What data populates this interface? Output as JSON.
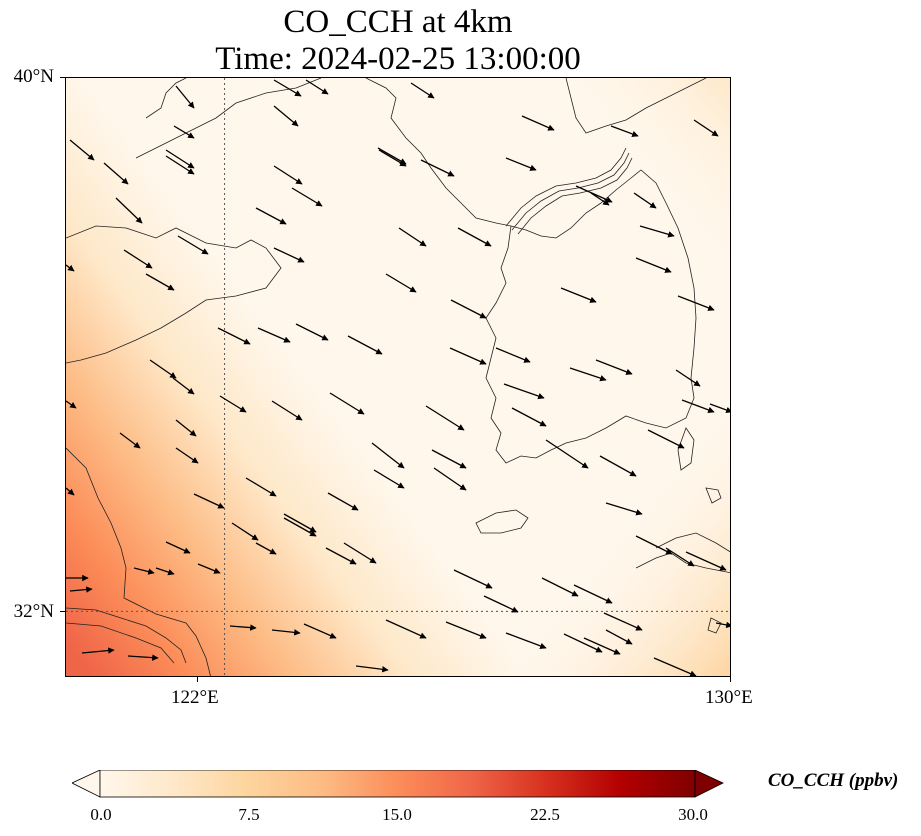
{
  "title": {
    "line1": "CO_CCH at 4km",
    "line2": "Time: 2024-02-25 13:00:00"
  },
  "map": {
    "projection": "lat-lon",
    "extent": {
      "lon_min": 119.5,
      "lon_max": 130.0,
      "lat_min": 31.0,
      "lat_max": 40.0
    },
    "gridlines": {
      "lons": [
        122
      ],
      "lats": [
        32
      ],
      "style": "dotted"
    },
    "lat_ticks": [
      {
        "value": 40,
        "label": "40°N"
      },
      {
        "value": 32,
        "label": "32°N"
      }
    ],
    "lon_ticks": [
      {
        "value": 122,
        "label": "122°E"
      },
      {
        "value": 130,
        "label": "130°E"
      }
    ],
    "field": {
      "variable": "CO_CCH",
      "units": "ppbv",
      "description_levels": "high values in south-west corner decreasing north-east",
      "max_in_view": 13.5
    },
    "wind_vectors": {
      "color": "#000000",
      "direction": "predominantly from north-west toward south-east, more westerly in the south"
    }
  },
  "colorbar": {
    "label": "CO_CCH (ppbv)",
    "min": 0.0,
    "max": 30.0,
    "extend": "both",
    "colormap": "OrRd",
    "stops": [
      "#fff7ec",
      "#fee8c8",
      "#fdd49e",
      "#fdbb84",
      "#fc8d59",
      "#ef6548",
      "#d7301f",
      "#b30000",
      "#7f0000"
    ],
    "ticks": [
      "0.0",
      "7.5",
      "15.0",
      "22.5",
      "30.0"
    ]
  }
}
